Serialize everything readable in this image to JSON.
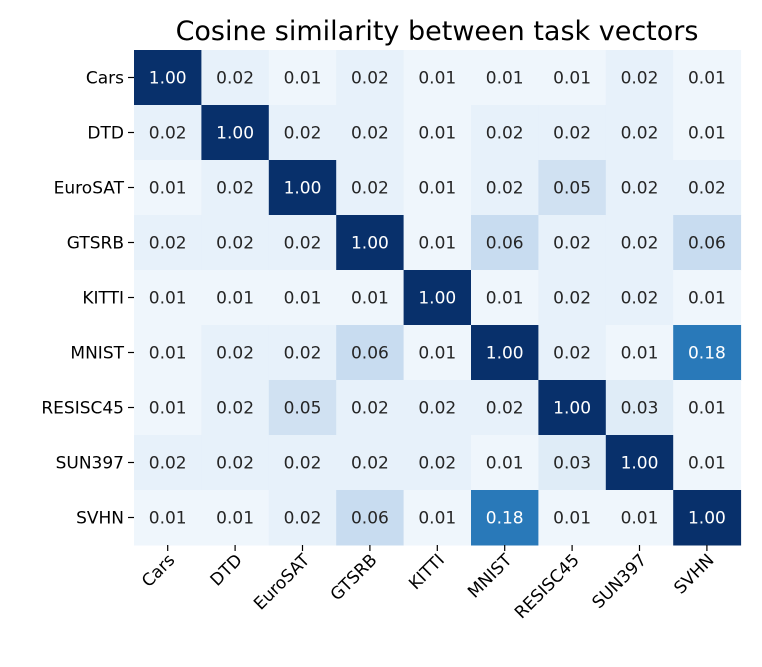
{
  "chart_data": {
    "type": "heatmap",
    "title": "Cosine similarity between task vectors",
    "xlabel": "",
    "ylabel": "",
    "colormap": "Blues",
    "colorbar": false,
    "x_categories": [
      "Cars",
      "DTD",
      "EuroSAT",
      "GTSRB",
      "KITTI",
      "MNIST",
      "RESISC45",
      "SUN397",
      "SVHN"
    ],
    "y_categories": [
      "Cars",
      "DTD",
      "EuroSAT",
      "GTSRB",
      "KITTI",
      "MNIST",
      "RESISC45",
      "SUN397",
      "SVHN"
    ],
    "values": [
      [
        1.0,
        0.02,
        0.01,
        0.02,
        0.01,
        0.01,
        0.01,
        0.02,
        0.01
      ],
      [
        0.02,
        1.0,
        0.02,
        0.02,
        0.01,
        0.02,
        0.02,
        0.02,
        0.01
      ],
      [
        0.01,
        0.02,
        1.0,
        0.02,
        0.01,
        0.02,
        0.05,
        0.02,
        0.02
      ],
      [
        0.02,
        0.02,
        0.02,
        1.0,
        0.01,
        0.06,
        0.02,
        0.02,
        0.06
      ],
      [
        0.01,
        0.01,
        0.01,
        0.01,
        1.0,
        0.01,
        0.02,
        0.02,
        0.01
      ],
      [
        0.01,
        0.02,
        0.02,
        0.06,
        0.01,
        1.0,
        0.02,
        0.01,
        0.18
      ],
      [
        0.01,
        0.02,
        0.05,
        0.02,
        0.02,
        0.02,
        1.0,
        0.03,
        0.01
      ],
      [
        0.02,
        0.02,
        0.02,
        0.02,
        0.02,
        0.01,
        0.03,
        1.0,
        0.01
      ],
      [
        0.01,
        0.01,
        0.02,
        0.06,
        0.01,
        0.18,
        0.01,
        0.01,
        1.0
      ]
    ]
  }
}
